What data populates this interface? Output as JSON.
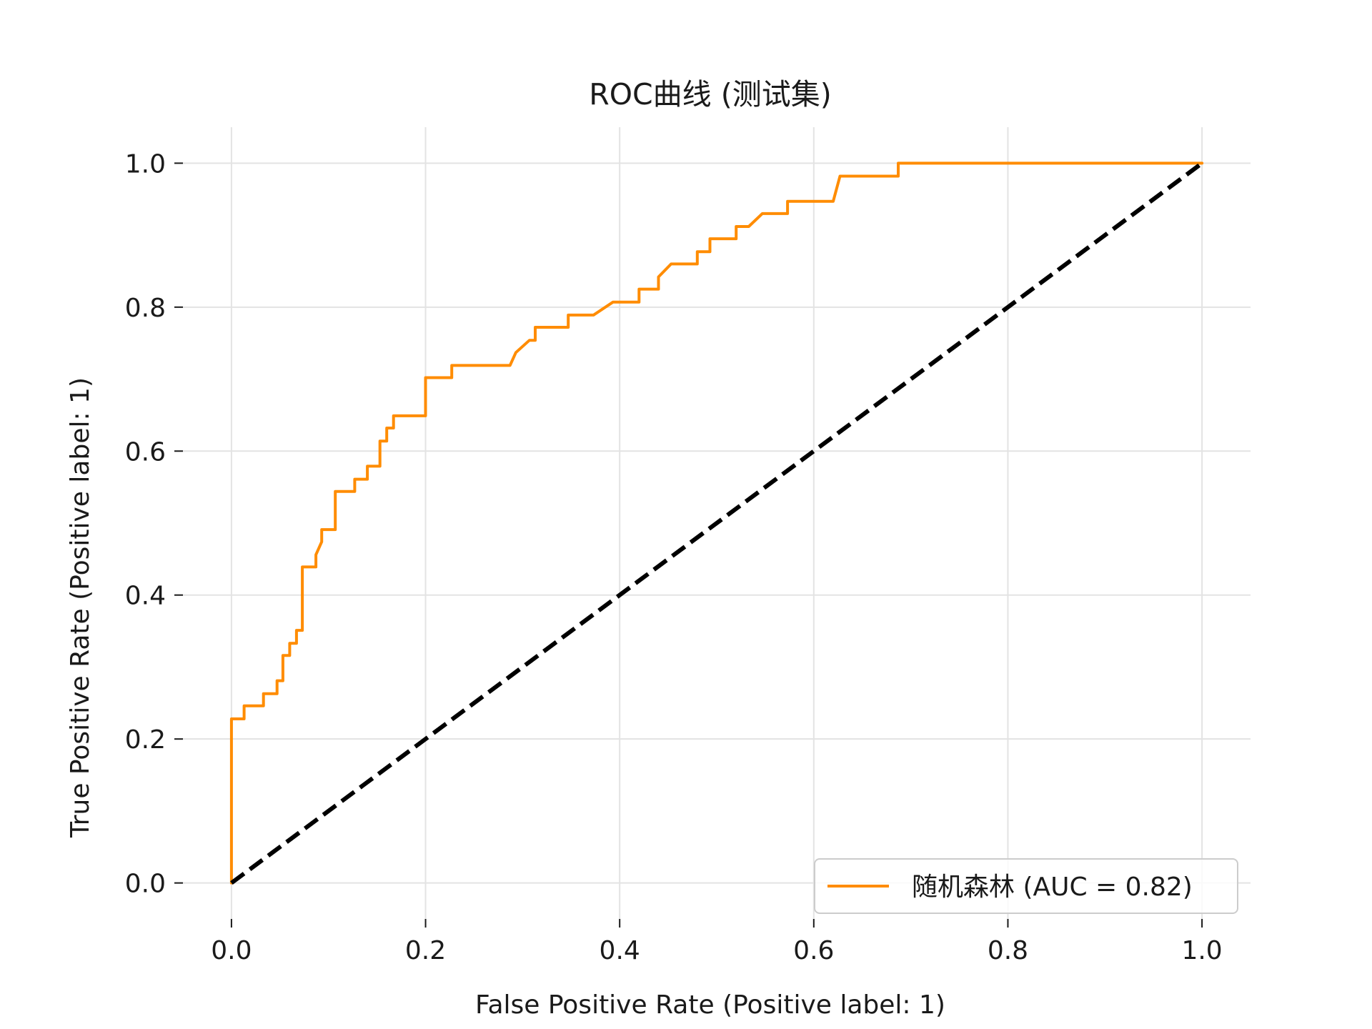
{
  "chart_data": {
    "type": "line",
    "title": "ROC曲线 (测试集)",
    "xlabel": "False Positive Rate (Positive label: 1)",
    "ylabel": "True Positive Rate (Positive label: 1)",
    "xlim": [
      -0.05,
      1.05
    ],
    "ylim": [
      -0.05,
      1.05
    ],
    "x_ticks": [
      0.0,
      0.2,
      0.4,
      0.6,
      0.8,
      1.0
    ],
    "x_tick_labels": [
      "0.0",
      "0.2",
      "0.4",
      "0.6",
      "0.8",
      "1.0"
    ],
    "y_ticks": [
      0.0,
      0.2,
      0.4,
      0.6,
      0.8,
      1.0
    ],
    "y_tick_labels": [
      "0.0",
      "0.2",
      "0.4",
      "0.6",
      "0.8",
      "1.0"
    ],
    "grid": true,
    "legend_position": "bottom-right",
    "series": [
      {
        "name": "随机森林 (AUC = 0.82)",
        "color": "#ff8c00",
        "style": "solid",
        "x": [
          0.0,
          0.0,
          0.0,
          0.013,
          0.013,
          0.033,
          0.033,
          0.047,
          0.047,
          0.053,
          0.053,
          0.06,
          0.06,
          0.067,
          0.067,
          0.073,
          0.073,
          0.087,
          0.087,
          0.093,
          0.093,
          0.107,
          0.107,
          0.127,
          0.127,
          0.14,
          0.14,
          0.153,
          0.153,
          0.16,
          0.16,
          0.167,
          0.167,
          0.2,
          0.2,
          0.227,
          0.227,
          0.287,
          0.293,
          0.307,
          0.313,
          0.313,
          0.347,
          0.347,
          0.373,
          0.393,
          0.42,
          0.42,
          0.44,
          0.44,
          0.453,
          0.48,
          0.48,
          0.493,
          0.493,
          0.52,
          0.52,
          0.533,
          0.547,
          0.547,
          0.573,
          0.573,
          0.587,
          0.587,
          0.62,
          0.627,
          0.627,
          0.687,
          0.687,
          1.0
        ],
        "y": [
          0.0,
          0.228,
          0.228,
          0.228,
          0.246,
          0.246,
          0.263,
          0.263,
          0.281,
          0.281,
          0.316,
          0.316,
          0.333,
          0.333,
          0.351,
          0.351,
          0.439,
          0.439,
          0.456,
          0.474,
          0.491,
          0.491,
          0.544,
          0.544,
          0.561,
          0.561,
          0.579,
          0.579,
          0.614,
          0.614,
          0.632,
          0.632,
          0.649,
          0.649,
          0.702,
          0.702,
          0.719,
          0.719,
          0.737,
          0.754,
          0.754,
          0.772,
          0.772,
          0.789,
          0.789,
          0.807,
          0.807,
          0.825,
          0.825,
          0.842,
          0.86,
          0.86,
          0.877,
          0.877,
          0.895,
          0.895,
          0.912,
          0.912,
          0.93,
          0.93,
          0.93,
          0.947,
          0.947,
          0.947,
          0.947,
          0.982,
          0.982,
          0.982,
          1.0,
          1.0
        ]
      },
      {
        "name": "",
        "color": "#000000",
        "style": "dashed",
        "x": [
          0.0,
          1.0
        ],
        "y": [
          0.0,
          1.0
        ]
      }
    ]
  }
}
